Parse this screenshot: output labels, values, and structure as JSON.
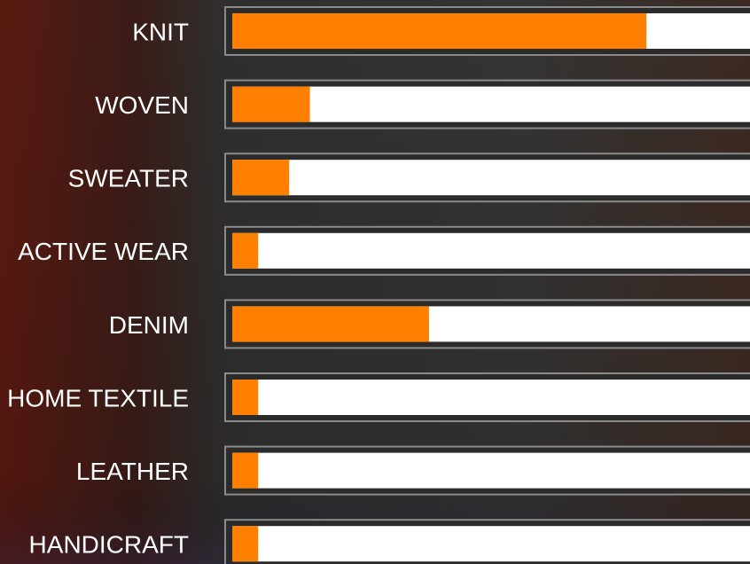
{
  "chart_data": {
    "type": "bar",
    "orientation": "horizontal",
    "categories": [
      "KNIT",
      "WOVEN",
      "SWEATER",
      "ACTIVE WEAR",
      "DENIM",
      "HOME TEXTILE",
      "LEATHER",
      "HANDICRAFT"
    ],
    "values": [
      80,
      15,
      11,
      5,
      38,
      5,
      5,
      5
    ],
    "color": "#ff8000",
    "track_color": "#ffffff",
    "xlim": [
      0,
      100
    ]
  }
}
